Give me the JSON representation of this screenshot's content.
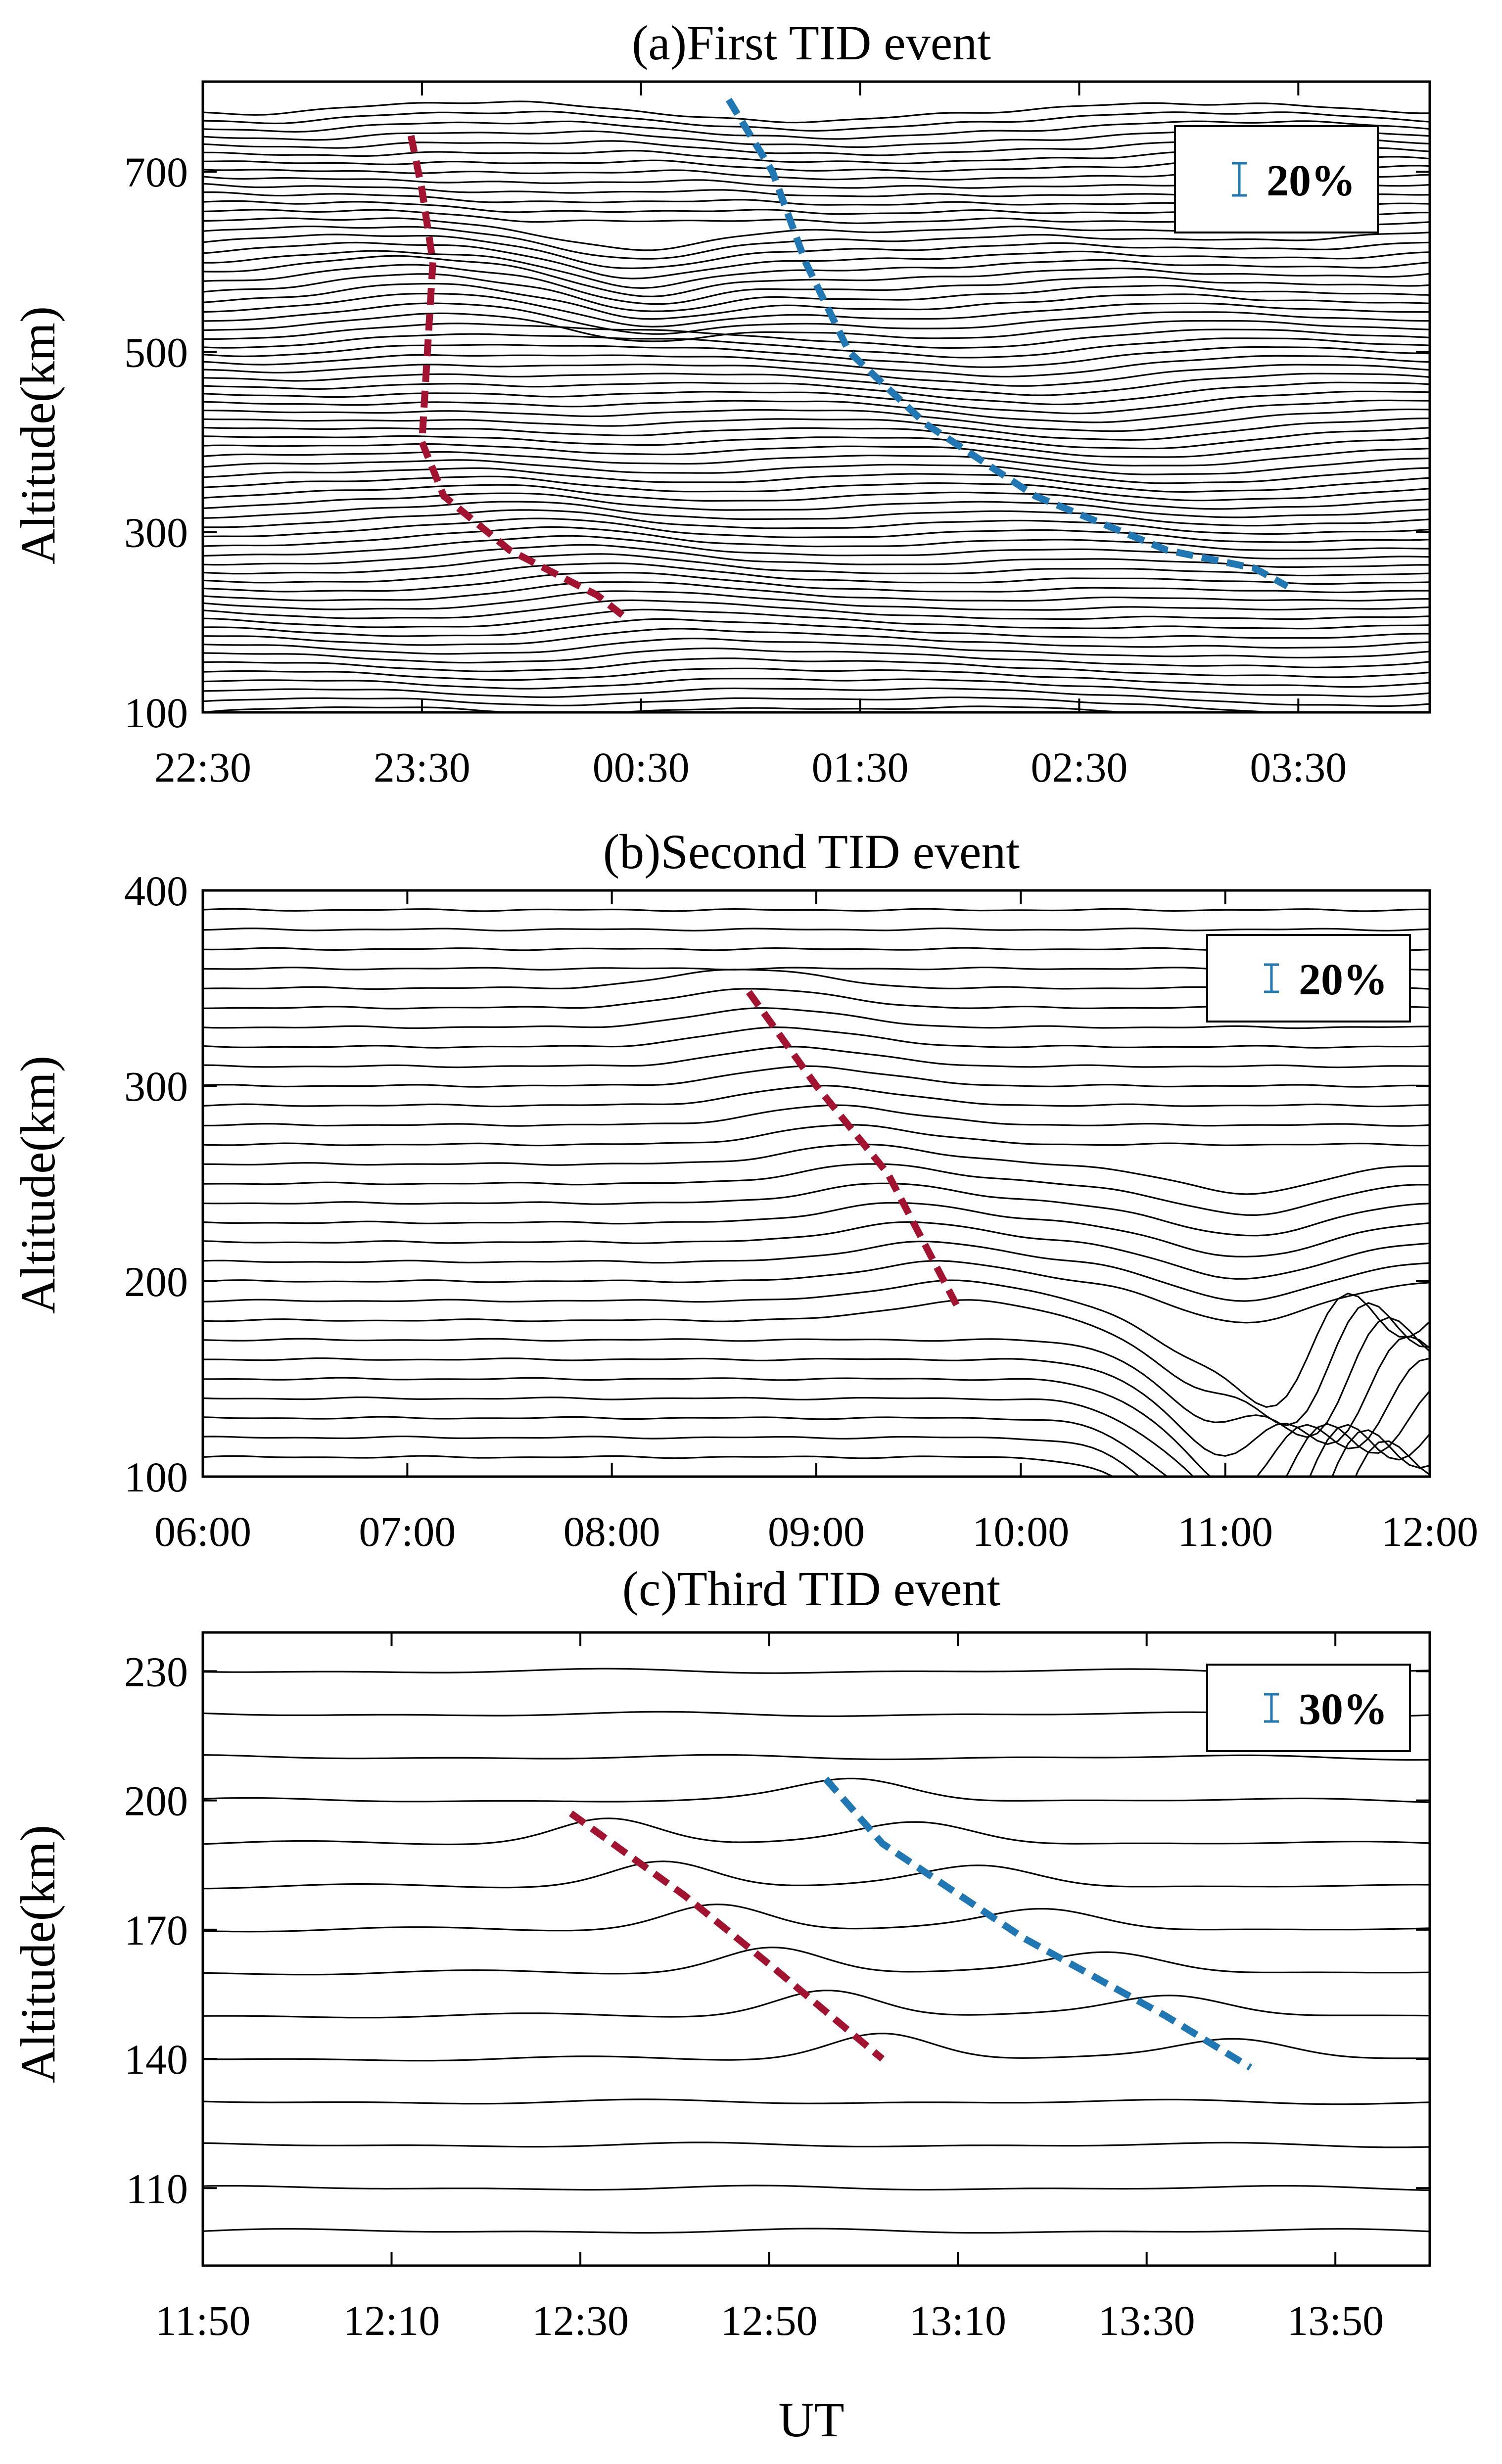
{
  "colors": {
    "trace": "#000000",
    "red_dash": "#A3122E",
    "blue_dash": "#1F77B4",
    "legend_bar": "#1F77B4"
  },
  "chart_data": [
    {
      "id": "a",
      "type": "line",
      "title": "(a)First TID event",
      "xlabel": "",
      "ylabel": "Altitude(km)",
      "ylim": [
        100,
        800
      ],
      "xticks": [
        "22:30",
        "23:30",
        "00:30",
        "01:30",
        "02:30",
        "03:30"
      ],
      "x_tick_hours": [
        0,
        1,
        2,
        3,
        4,
        5
      ],
      "xlim_hours": [
        0,
        5.6
      ],
      "yticks": [
        100,
        300,
        500,
        700
      ],
      "legend": "20%",
      "traces": {
        "alt_start": 100,
        "alt_end": 770,
        "alt_step": 10,
        "samples": 120
      },
      "annotations": [
        {
          "color": "red",
          "points": [
            [
              0.95,
              740
            ],
            [
              1.0,
              680
            ],
            [
              1.05,
              600
            ],
            [
              1.02,
              480
            ],
            [
              1.0,
              400
            ],
            [
              1.1,
              340
            ],
            [
              1.4,
              280
            ],
            [
              1.8,
              230
            ],
            [
              1.93,
              205
            ]
          ]
        },
        {
          "color": "blue",
          "points": [
            [
              2.4,
              780
            ],
            [
              2.6,
              700
            ],
            [
              2.75,
              600
            ],
            [
              2.95,
              500
            ],
            [
              3.3,
              420
            ],
            [
              3.8,
              340
            ],
            [
              4.4,
              280
            ],
            [
              4.8,
              260
            ],
            [
              4.95,
              240
            ]
          ]
        }
      ]
    },
    {
      "id": "b",
      "type": "line",
      "title": "(b)Second TID event",
      "xlabel": "",
      "ylabel": "Altitude(km)",
      "ylim": [
        100,
        400
      ],
      "xticks": [
        "06:00",
        "07:00",
        "08:00",
        "09:00",
        "10:00",
        "11:00",
        "12:00"
      ],
      "x_tick_hours": [
        0,
        1,
        2,
        3,
        4,
        5,
        6
      ],
      "xlim_hours": [
        0,
        6
      ],
      "yticks": [
        100,
        200,
        300,
        400
      ],
      "legend": "20%",
      "traces": {
        "alt_start": 110,
        "alt_end": 390,
        "alt_step": 10,
        "samples": 120
      },
      "annotations": [
        {
          "color": "red",
          "points": [
            [
              2.67,
              348
            ],
            [
              3.0,
              300
            ],
            [
              3.35,
              255
            ],
            [
              3.7,
              185
            ]
          ]
        }
      ]
    },
    {
      "id": "c",
      "type": "line",
      "title": "(c)Third TID event",
      "xlabel": "UT",
      "ylabel": "Altitude(km)",
      "ylim": [
        92,
        239
      ],
      "xticks": [
        "11:50",
        "12:10",
        "12:30",
        "12:50",
        "13:10",
        "13:30",
        "13:50"
      ],
      "x_tick_hours": [
        0,
        0.3333,
        0.6667,
        1.0,
        1.3333,
        1.6667,
        2.0
      ],
      "xlim_hours": [
        0,
        2.1667
      ],
      "yticks": [
        110,
        140,
        170,
        200,
        230
      ],
      "legend": "30%",
      "traces": {
        "alt_start": 100,
        "alt_end": 240,
        "alt_step": 10,
        "samples": 160
      },
      "annotations": [
        {
          "color": "red",
          "points": [
            [
              0.65,
              197
            ],
            [
              0.85,
              178
            ],
            [
              1.0,
              162
            ],
            [
              1.2,
              140
            ]
          ]
        },
        {
          "color": "blue",
          "points": [
            [
              1.1,
              205
            ],
            [
              1.2,
              190
            ],
            [
              1.45,
              168
            ],
            [
              1.7,
              150
            ],
            [
              1.85,
              138
            ]
          ]
        }
      ]
    }
  ]
}
